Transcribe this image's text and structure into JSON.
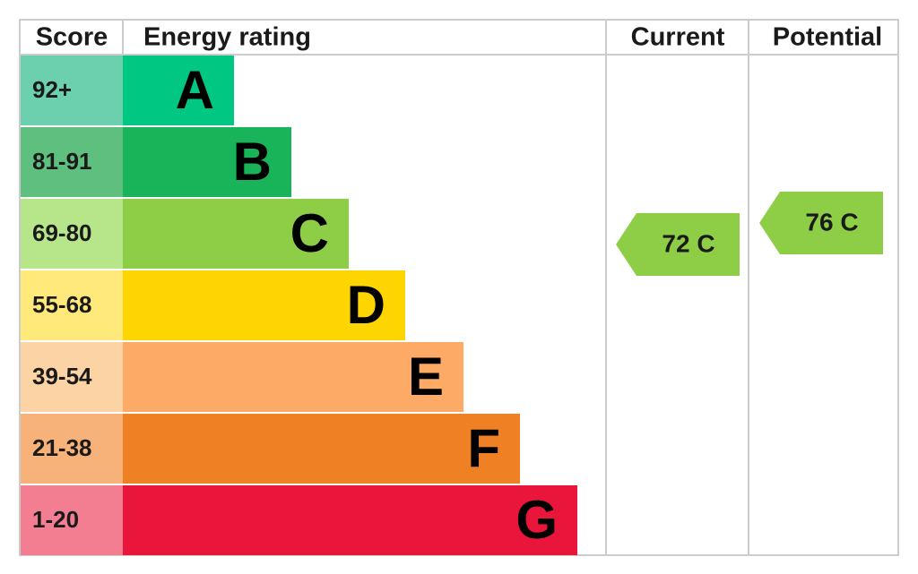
{
  "header": {
    "score": "Score",
    "rating": "Energy rating",
    "current": "Current",
    "potential": "Potential"
  },
  "bands": [
    {
      "score": "92+",
      "letter": "A"
    },
    {
      "score": "81-91",
      "letter": "B"
    },
    {
      "score": "69-80",
      "letter": "C"
    },
    {
      "score": "55-68",
      "letter": "D"
    },
    {
      "score": "39-54",
      "letter": "E"
    },
    {
      "score": "21-38",
      "letter": "F"
    },
    {
      "score": "1-20",
      "letter": "G"
    }
  ],
  "current": {
    "label": "72 C"
  },
  "potential": {
    "label": "76 C"
  }
}
